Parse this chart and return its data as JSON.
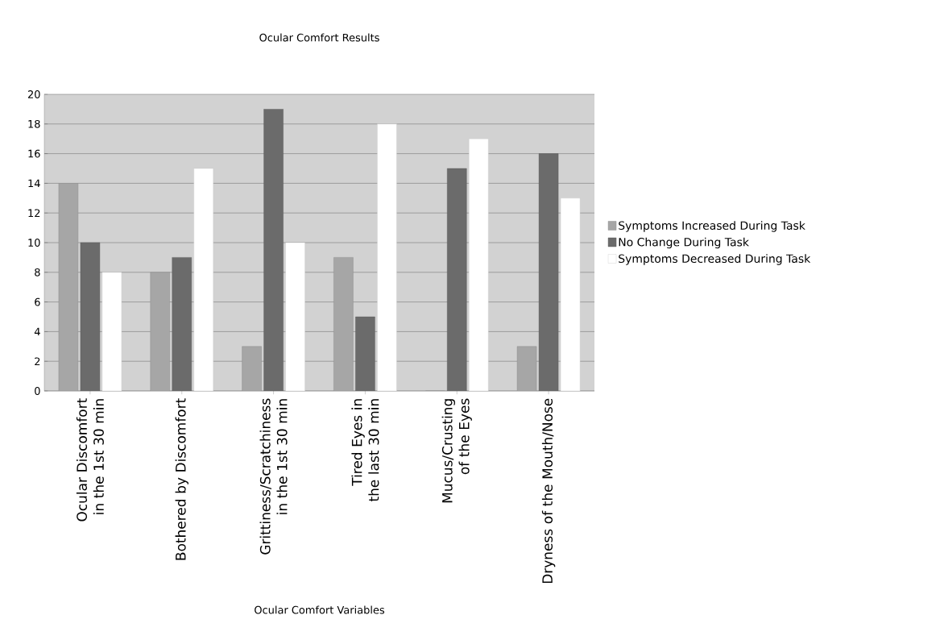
{
  "chart_data": {
    "type": "bar",
    "title": "Ocular Comfort Results",
    "xlabel": "Ocular Comfort Variables",
    "categories": [
      "Ocular Discomfort in the 1st 30 min",
      "Bothered by Discomfort",
      "Grittiness/Scratchiness in the 1st 30 min",
      "Tired Eyes in the last 30 min",
      "Mucus/Crusting of the Eyes",
      "Dryness of the Mouth/Nose"
    ],
    "series": [
      {
        "name": "Symptoms Increased During Task",
        "color": "#a6a6a6",
        "values": [
          14,
          8,
          3,
          9,
          0,
          3
        ]
      },
      {
        "name": "No Change During Task",
        "color": "#6b6b6b",
        "values": [
          10,
          9,
          19,
          5,
          15,
          16
        ]
      },
      {
        "name": "Symptoms Decreased During Task",
        "color": "#ffffff",
        "values": [
          8,
          15,
          10,
          18,
          17,
          13
        ]
      }
    ],
    "ylim": [
      0,
      20
    ],
    "yticks": [
      0,
      2,
      4,
      6,
      8,
      10,
      12,
      14,
      16,
      18,
      20
    ],
    "grid": "y",
    "legend": "right"
  }
}
